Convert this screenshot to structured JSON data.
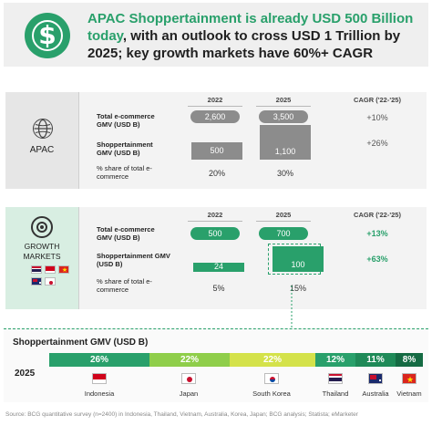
{
  "header": {
    "title_highlight": "APAC Shoppertainment is already USD 500 Billion today",
    "title_rest": ", with an outlook to cross USD 1 Trillion by 2025; key growth markets have 60%+ CAGR",
    "icon": "dollar-circle-icon"
  },
  "apac": {
    "label": "APAC",
    "icon": "globe-icon",
    "col_2022": "2022",
    "col_2025": "2025",
    "col_cagr": "CAGR ('22-'25)",
    "row_gmv_label": "Total e-commerce GMV (USD B)",
    "row_shop_label": "Shoppertainment GMV (USD B)",
    "row_share_label": "% share of total e-commerce",
    "gmv_2022": "2,600",
    "gmv_2025": "3,500",
    "gmv_cagr": "+10%",
    "shop_2022": "500",
    "shop_2025": "1,100",
    "shop_cagr": "+26%",
    "share_2022": "20%",
    "share_2025": "30%"
  },
  "growth": {
    "label_line1": "GROWTH",
    "label_line2": "MARKETS",
    "icon": "target-icon",
    "col_2022": "2022",
    "col_2025": "2025",
    "col_cagr": "CAGR ('22-'25)",
    "row_gmv_label": "Total e-commerce GMV (USD B)",
    "row_shop_label": "Shoppertainment GMV (USD B)",
    "row_share_label": "% share of total e-commerce",
    "gmv_2022": "500",
    "gmv_2025": "700",
    "gmv_cagr": "+13%",
    "shop_2022": "24",
    "shop_2025": "100",
    "shop_cagr": "+63%",
    "share_2022": "5%",
    "share_2025": "15%"
  },
  "strip": {
    "title": "Shoppertainment GMV (USD B)",
    "year": "2025"
  },
  "source": "Source: BCG quantitative survey (n=2400) in Indonesia, Thailand, Vietnam, Australia, Korea, Japan; BCG analysis; Statista; eMarketer",
  "colors": {
    "brand_green": "#29a06b",
    "bar_grey": "#8c8c8c",
    "seg_indonesia": "#29a06b",
    "seg_japan": "#8fce4a",
    "seg_korea": "#d4e24a",
    "seg_thailand": "#29a06b",
    "seg_australia": "#1f8a58",
    "seg_vietnam": "#156b43"
  },
  "chart_data": [
    {
      "type": "bar",
      "title": "APAC",
      "categories": [
        "2022",
        "2025"
      ],
      "series": [
        {
          "name": "Total e-commerce GMV (USD B)",
          "values": [
            2600,
            3500
          ]
        },
        {
          "name": "Shoppertainment GMV (USD B)",
          "values": [
            500,
            1100
          ]
        },
        {
          "name": "% share of total e-commerce",
          "values": [
            20,
            30
          ]
        }
      ],
      "cagr": {
        "Total e-commerce GMV (USD B)": "+10%",
        "Shoppertainment GMV (USD B)": "+26%"
      }
    },
    {
      "type": "bar",
      "title": "GROWTH MARKETS",
      "categories": [
        "2022",
        "2025"
      ],
      "series": [
        {
          "name": "Total e-commerce GMV (USD B)",
          "values": [
            500,
            700
          ]
        },
        {
          "name": "Shoppertainment GMV (USD B)",
          "values": [
            24,
            100
          ]
        },
        {
          "name": "% share of total e-commerce",
          "values": [
            5,
            15
          ]
        }
      ],
      "cagr": {
        "Total e-commerce GMV (USD B)": "+13%",
        "Shoppertainment GMV (USD B)": "+63%"
      }
    },
    {
      "type": "bar",
      "title": "Shoppertainment GMV (USD B)",
      "categories": [
        "Indonesia",
        "Japan",
        "South Korea",
        "Thailand",
        "Australia",
        "Vietnam"
      ],
      "values": [
        26,
        22,
        22,
        12,
        11,
        8
      ],
      "labels": [
        "26%",
        "22%",
        "22%",
        "12%",
        "11%",
        "8%"
      ],
      "year": "2025"
    }
  ]
}
